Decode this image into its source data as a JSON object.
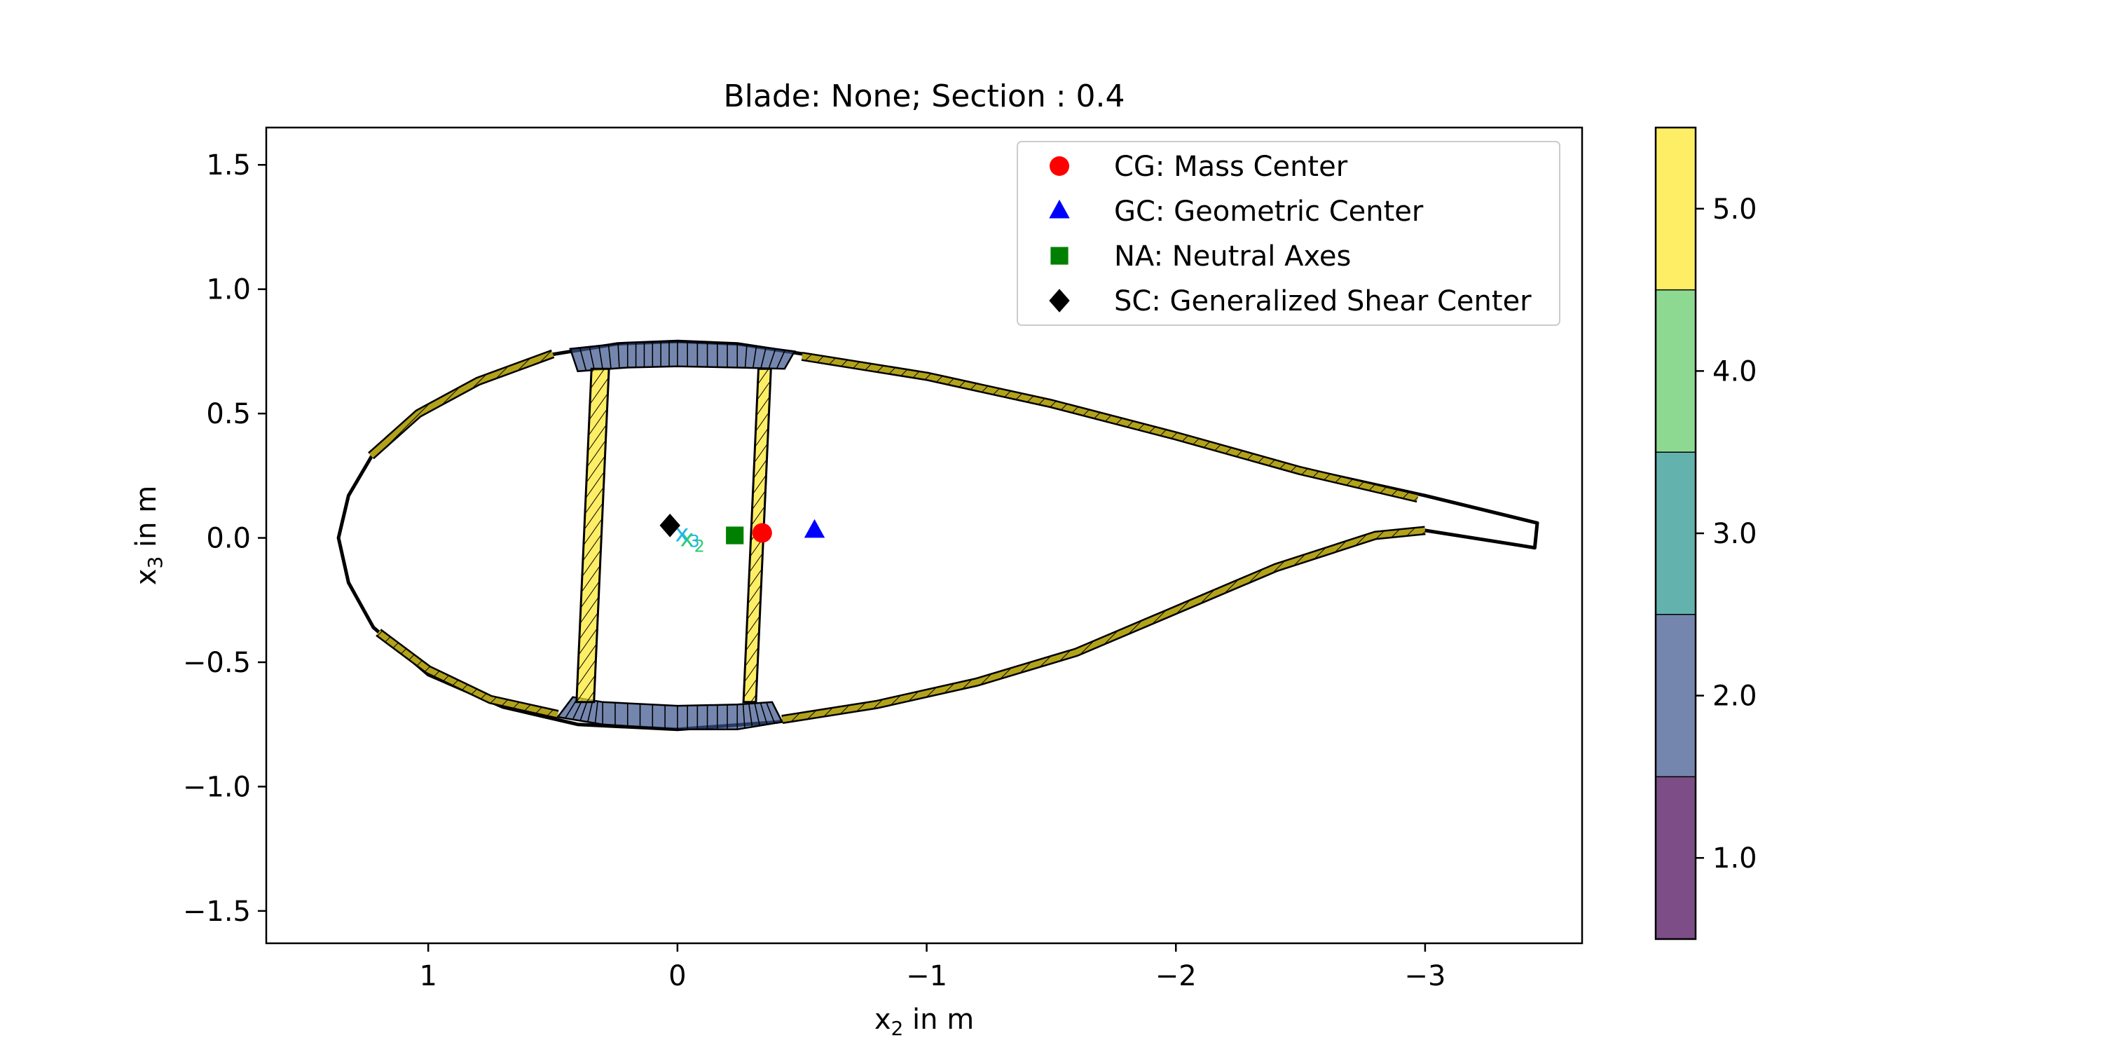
{
  "chart_data": {
    "type": "scatter",
    "title": "Blade: None; Section : 0.4",
    "xlabel": {
      "base": "x",
      "sub": "2",
      "rest": " in m"
    },
    "ylabel": {
      "base": "x",
      "sub": "3",
      "rest": " in m"
    },
    "xlim": [
      1.65,
      -3.63
    ],
    "ylim": [
      -1.63,
      1.65
    ],
    "x_inverted": true,
    "aspect_equal": true,
    "grid": false,
    "x_ticks": [
      {
        "value": 1,
        "label": "1"
      },
      {
        "value": 0,
        "label": "0"
      },
      {
        "value": -1,
        "label": "−1"
      },
      {
        "value": -2,
        "label": "−2"
      },
      {
        "value": -3,
        "label": "−3"
      }
    ],
    "y_ticks": [
      {
        "value": 1.5,
        "label": "1.5"
      },
      {
        "value": 1.0,
        "label": "1.0"
      },
      {
        "value": 0.5,
        "label": "0.5"
      },
      {
        "value": 0.0,
        "label": "0.0"
      },
      {
        "value": -0.5,
        "label": "−0.5"
      },
      {
        "value": -1.0,
        "label": "−1.0"
      },
      {
        "value": -1.5,
        "label": "−1.5"
      }
    ],
    "legend_position": "top-right",
    "markers": [
      {
        "key": "CG",
        "label": "CG: Mass Center",
        "shape": "circle",
        "color": "#ff0000",
        "x": -0.34,
        "y": 0.02
      },
      {
        "key": "GC",
        "label": "GC: Geometric Center",
        "shape": "triangle",
        "color": "#0000ff",
        "x": -0.55,
        "y": 0.03
      },
      {
        "key": "NA",
        "label": "NA: Neutral Axes",
        "shape": "square",
        "color": "#008000",
        "x": -0.23,
        "y": 0.01
      },
      {
        "key": "SC",
        "label": "SC: Generalized Shear Center",
        "shape": "diamond",
        "color": "#000000",
        "x": 0.03,
        "y": 0.05
      }
    ],
    "principal_axis_labels": [
      {
        "base": "x",
        "sub": "2",
        "color": "#2ecc71",
        "x": -0.06,
        "y": 0.0
      },
      {
        "base": "x",
        "sub": "3",
        "color": "#1fb8e6",
        "x": -0.04,
        "y": 0.02
      }
    ],
    "airfoil_outer": [
      [
        1.36,
        0.0
      ],
      [
        1.32,
        0.17
      ],
      [
        1.22,
        0.34
      ],
      [
        1.06,
        0.49
      ],
      [
        0.82,
        0.63
      ],
      [
        0.55,
        0.73
      ],
      [
        0.24,
        0.78
      ],
      [
        0.0,
        0.79
      ],
      [
        -0.24,
        0.78
      ],
      [
        -0.5,
        0.74
      ],
      [
        -1.0,
        0.66
      ],
      [
        -1.5,
        0.55
      ],
      [
        -2.0,
        0.42
      ],
      [
        -2.5,
        0.28
      ],
      [
        -3.0,
        0.17
      ],
      [
        -3.45,
        0.06
      ],
      [
        -3.44,
        -0.04
      ],
      [
        -3.38,
        -0.03
      ],
      [
        -3.0,
        0.03
      ],
      [
        -2.8,
        0.01
      ],
      [
        -2.4,
        -0.13
      ],
      [
        -2.0,
        -0.3
      ],
      [
        -1.6,
        -0.47
      ],
      [
        -1.2,
        -0.59
      ],
      [
        -0.8,
        -0.68
      ],
      [
        -0.4,
        -0.74
      ],
      [
        0.0,
        -0.77
      ],
      [
        0.4,
        -0.75
      ],
      [
        0.7,
        -0.68
      ],
      [
        1.0,
        -0.55
      ],
      [
        1.22,
        -0.36
      ],
      [
        1.32,
        -0.18
      ],
      [
        1.36,
        0.0
      ]
    ],
    "skin_panels": [
      {
        "material": 5.0,
        "points": [
          [
            1.23,
            0.33
          ],
          [
            1.04,
            0.5
          ],
          [
            0.8,
            0.63
          ],
          [
            0.5,
            0.74
          ]
        ]
      },
      {
        "material": 5.0,
        "points": [
          [
            -0.5,
            0.73
          ],
          [
            -1.0,
            0.65
          ],
          [
            -1.5,
            0.54
          ],
          [
            -2.0,
            0.41
          ],
          [
            -2.5,
            0.27
          ],
          [
            -2.97,
            0.16
          ]
        ]
      },
      {
        "material": 5.0,
        "points": [
          [
            1.2,
            -0.38
          ],
          [
            1.0,
            -0.53
          ],
          [
            0.75,
            -0.65
          ],
          [
            0.48,
            -0.71
          ]
        ]
      },
      {
        "material": 5.0,
        "points": [
          [
            -0.42,
            -0.73
          ],
          [
            -0.8,
            -0.67
          ],
          [
            -1.2,
            -0.58
          ],
          [
            -1.6,
            -0.46
          ],
          [
            -2.0,
            -0.29
          ],
          [
            -2.4,
            -0.12
          ],
          [
            -2.8,
            0.01
          ],
          [
            -3.0,
            0.03
          ]
        ]
      }
    ],
    "spar_caps": [
      {
        "material": 2.0,
        "outer": [
          [
            0.43,
            0.76
          ],
          [
            0.2,
            0.785
          ],
          [
            0.0,
            0.79
          ],
          [
            -0.24,
            0.78
          ],
          [
            -0.47,
            0.75
          ]
        ],
        "inner": [
          [
            -0.43,
            0.68
          ],
          [
            -0.24,
            0.685
          ],
          [
            0.0,
            0.69
          ],
          [
            0.2,
            0.685
          ],
          [
            0.4,
            0.67
          ]
        ]
      },
      {
        "material": 2.0,
        "outer": [
          [
            0.48,
            -0.72
          ],
          [
            0.3,
            -0.75
          ],
          [
            0.0,
            -0.77
          ],
          [
            -0.24,
            -0.77
          ],
          [
            -0.42,
            -0.74
          ]
        ],
        "inner": [
          [
            -0.38,
            -0.66
          ],
          [
            -0.24,
            -0.67
          ],
          [
            0.0,
            -0.675
          ],
          [
            0.3,
            -0.66
          ],
          [
            0.42,
            -0.64
          ]
        ]
      }
    ],
    "shear_webs": [
      {
        "material": 5.0,
        "top": [
          0.31,
          0.68
        ],
        "bottom": [
          0.37,
          -0.66
        ],
        "width": 0.07
      },
      {
        "material": 5.0,
        "top": [
          -0.35,
          0.68
        ],
        "bottom": [
          -0.29,
          -0.66
        ],
        "width": 0.05
      }
    ],
    "colorbar": {
      "boundaries": [
        0.5,
        1.5,
        2.5,
        3.5,
        4.5,
        5.5
      ],
      "colors": [
        "#440154",
        "#3b528b",
        "#21918c",
        "#5ec962",
        "#fde725"
      ],
      "alpha": 0.7,
      "ticks": [
        {
          "value": 1.0,
          "label": "1.0"
        },
        {
          "value": 2.0,
          "label": "2.0"
        },
        {
          "value": 3.0,
          "label": "3.0"
        },
        {
          "value": 4.0,
          "label": "4.0"
        },
        {
          "value": 5.0,
          "label": "5.0"
        }
      ]
    }
  }
}
